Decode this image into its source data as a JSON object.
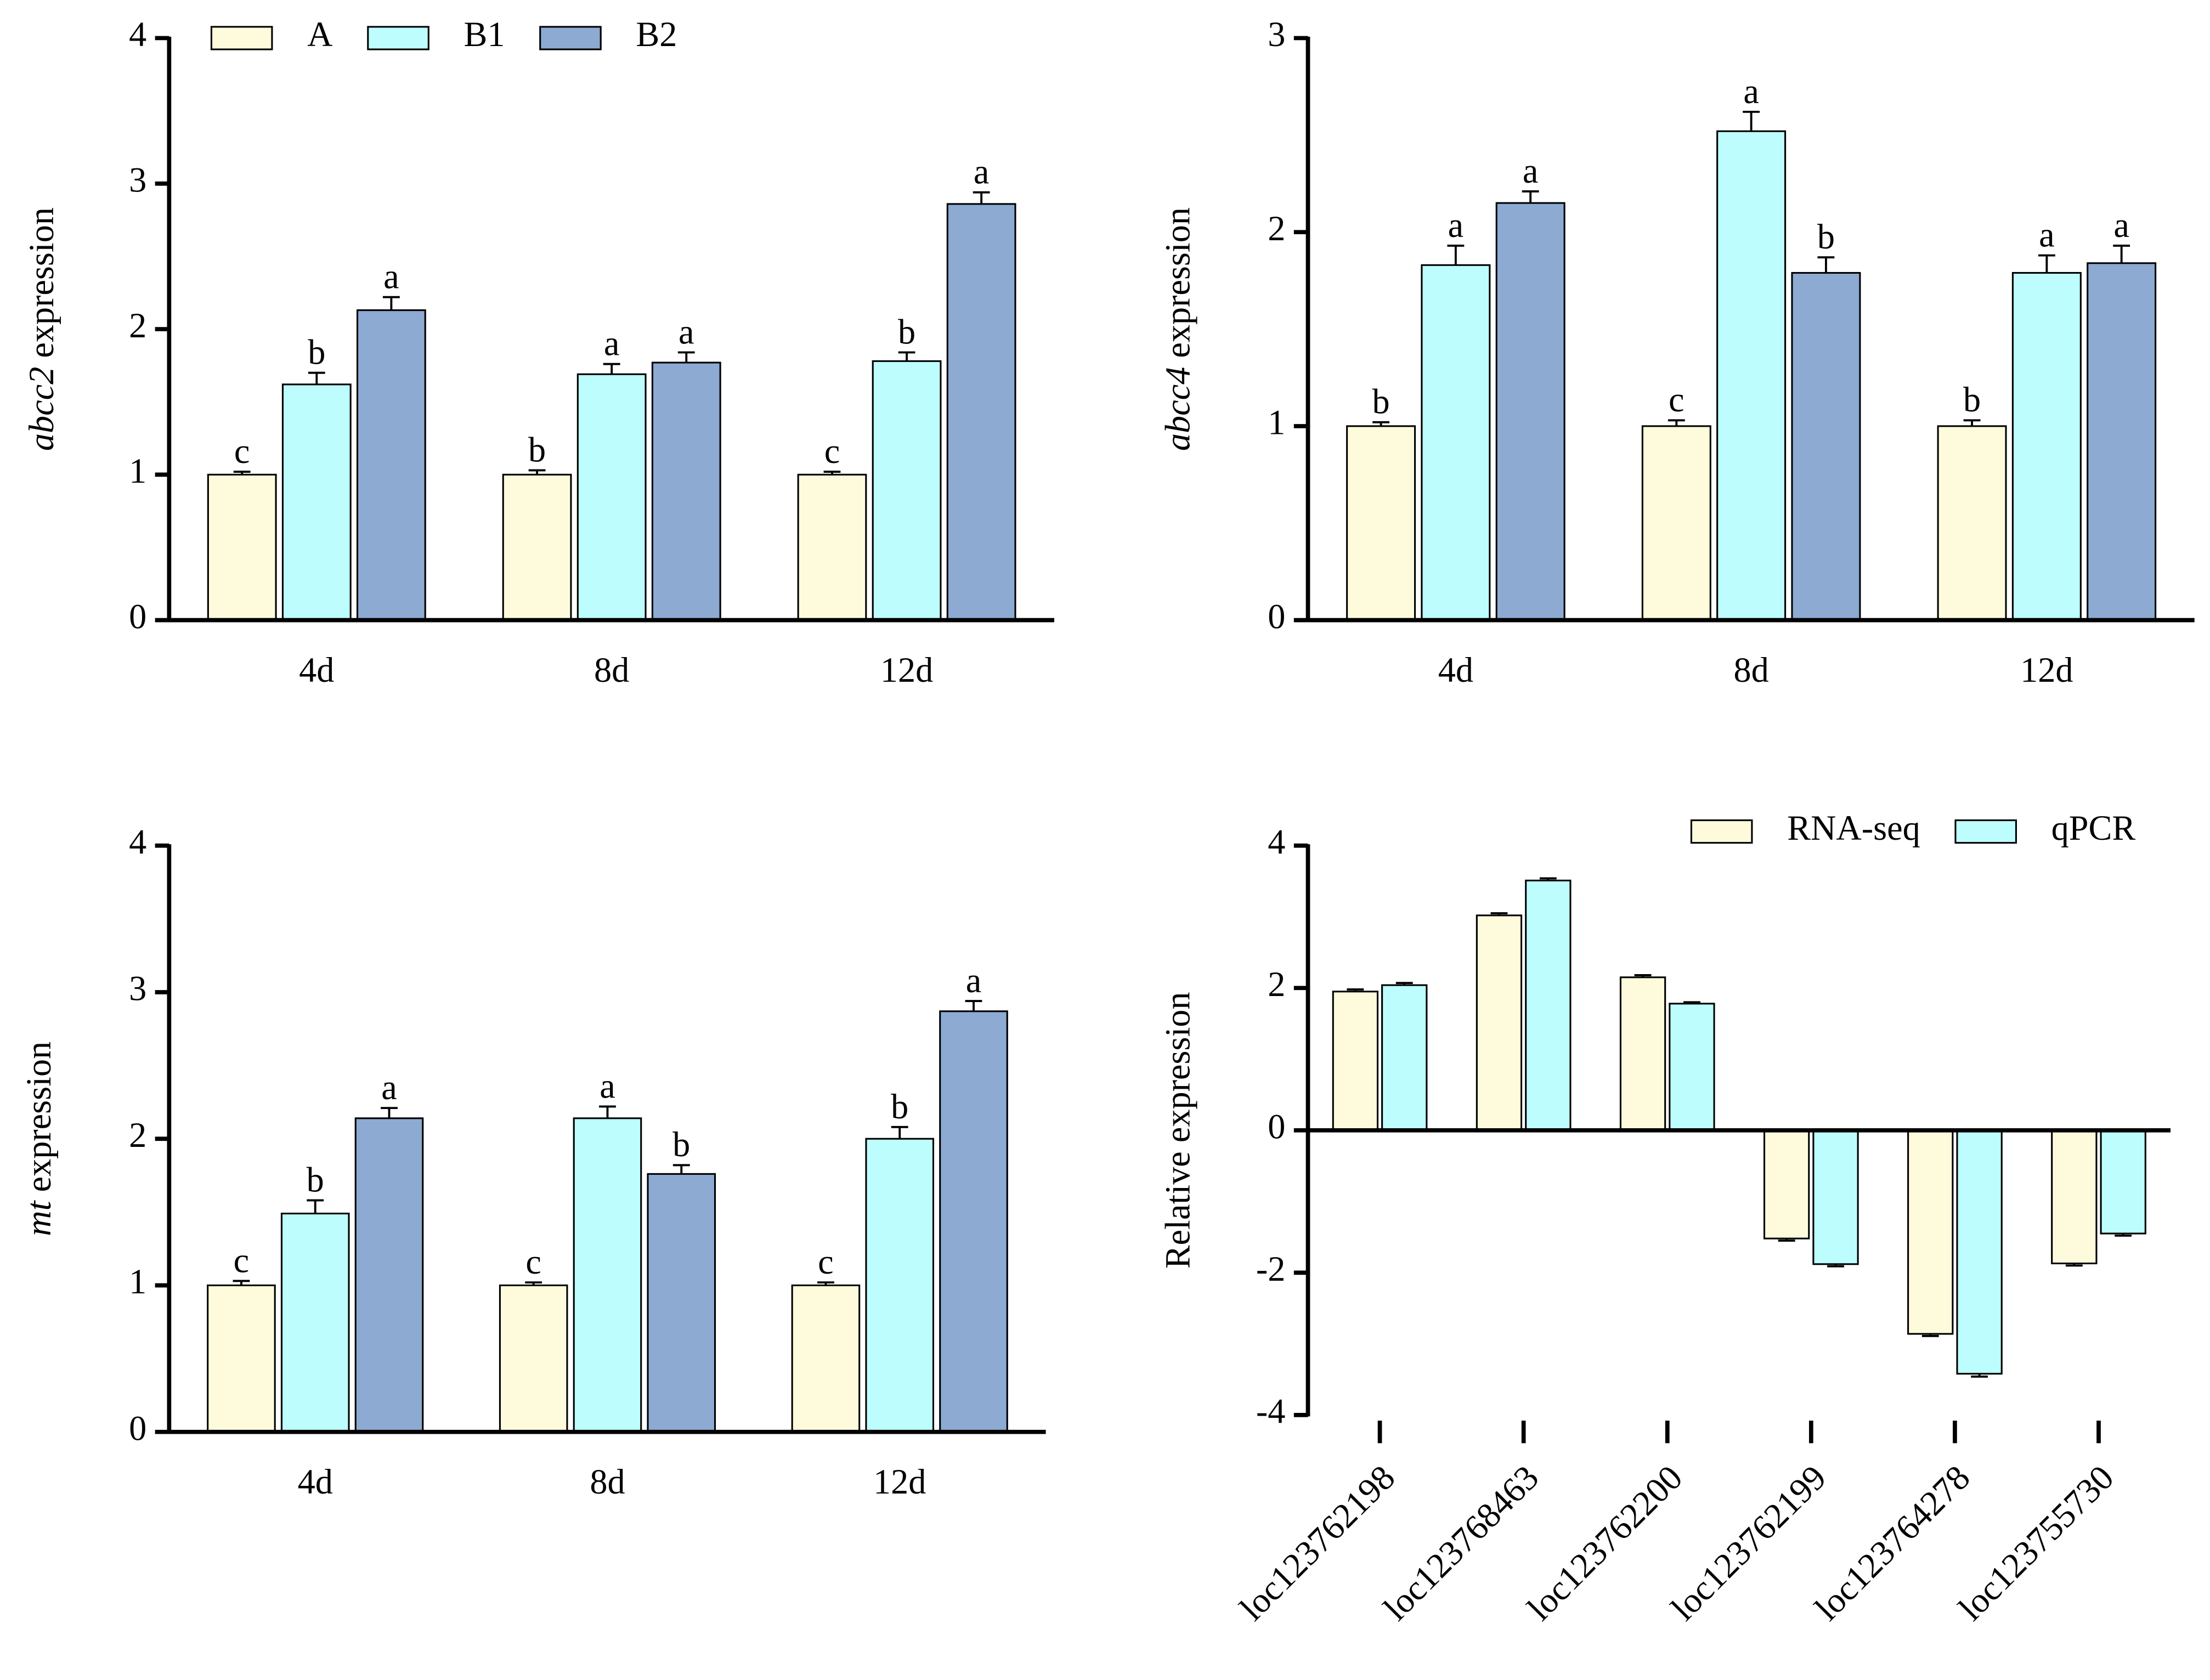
{
  "chart_data": [
    {
      "type": "bar",
      "ylabel_italic": "abcc2",
      "ylabel": "expression",
      "categories": [
        "4d",
        "8d",
        "12d"
      ],
      "ylim": [
        0,
        4
      ],
      "yticks": [
        0,
        1,
        2,
        3,
        4
      ],
      "legend": "top-left",
      "series": [
        {
          "name": "A",
          "color": "#fdfbdc",
          "values": [
            1,
            1,
            1
          ],
          "errors": [
            0.02,
            0.03,
            0.02
          ],
          "significance": [
            "c",
            "b",
            "c"
          ]
        },
        {
          "name": "B1",
          "color": "#bdfdfd",
          "values": [
            1.62,
            1.69,
            1.78
          ],
          "errors": [
            0.08,
            0.07,
            0.06
          ],
          "significance": [
            "b",
            "a",
            "b"
          ]
        },
        {
          "name": "B2",
          "color": "#8caad2",
          "values": [
            2.13,
            1.77,
            2.86
          ],
          "errors": [
            0.09,
            0.07,
            0.08
          ],
          "significance": [
            "a",
            "a",
            "a"
          ]
        }
      ]
    },
    {
      "type": "bar",
      "ylabel_italic": "abcc4",
      "ylabel": "expression",
      "categories": [
        "4d",
        "8d",
        "12d"
      ],
      "ylim": [
        0,
        3
      ],
      "yticks": [
        0,
        1,
        2,
        3
      ],
      "series": [
        {
          "color": "#fdfbdc",
          "values": [
            1,
            1,
            1
          ],
          "errors": [
            0.02,
            0.03,
            0.03
          ],
          "significance": [
            "b",
            "c",
            "b"
          ]
        },
        {
          "color": "#bdfdfd",
          "values": [
            1.83,
            2.52,
            1.79
          ],
          "errors": [
            0.1,
            0.1,
            0.09
          ],
          "significance": [
            "a",
            "a",
            "a"
          ]
        },
        {
          "color": "#8caad2",
          "values": [
            2.15,
            1.79,
            1.84
          ],
          "errors": [
            0.06,
            0.08,
            0.09
          ],
          "significance": [
            "a",
            "b",
            "a"
          ]
        }
      ]
    },
    {
      "type": "bar",
      "ylabel_italic": "mt",
      "ylabel": "expression",
      "categories": [
        "4d",
        "8d",
        "12d"
      ],
      "ylim": [
        0,
        4
      ],
      "yticks": [
        0,
        1,
        2,
        3,
        4
      ],
      "series": [
        {
          "color": "#fdfbdc",
          "values": [
            1,
            1,
            1
          ],
          "errors": [
            0.03,
            0.02,
            0.02
          ],
          "significance": [
            "c",
            "c",
            "c"
          ]
        },
        {
          "color": "#bdfdfd",
          "values": [
            1.49,
            2.14,
            2.0
          ],
          "errors": [
            0.09,
            0.08,
            0.08
          ],
          "significance": [
            "b",
            "a",
            "b"
          ]
        },
        {
          "color": "#8caad2",
          "values": [
            2.14,
            1.76,
            2.87
          ],
          "errors": [
            0.07,
            0.06,
            0.07
          ],
          "significance": [
            "a",
            "b",
            "a"
          ]
        }
      ]
    },
    {
      "type": "bar",
      "ylabel": "Relative expression",
      "categories": [
        "loc123762198",
        "loc123768463",
        "loc123762200",
        "loc123762199",
        "loc123764278",
        "loc123755730"
      ],
      "ylim": [
        -4,
        4
      ],
      "yticks": [
        -4,
        -2,
        0,
        2,
        4
      ],
      "legend": "top-right",
      "series": [
        {
          "name": "RNA-seq",
          "color": "#fdfbdc",
          "values": [
            1.95,
            3.02,
            2.15,
            -1.52,
            -2.86,
            -1.87
          ],
          "errors": [
            0.03,
            0.03,
            0.03,
            0.03,
            0.03,
            0.03
          ]
        },
        {
          "name": "qPCR",
          "color": "#bdfdfd",
          "values": [
            2.04,
            3.51,
            1.78,
            -1.88,
            -3.42,
            -1.45
          ],
          "errors": [
            0.03,
            0.03,
            0.02,
            0.03,
            0.04,
            0.03
          ]
        }
      ]
    }
  ]
}
